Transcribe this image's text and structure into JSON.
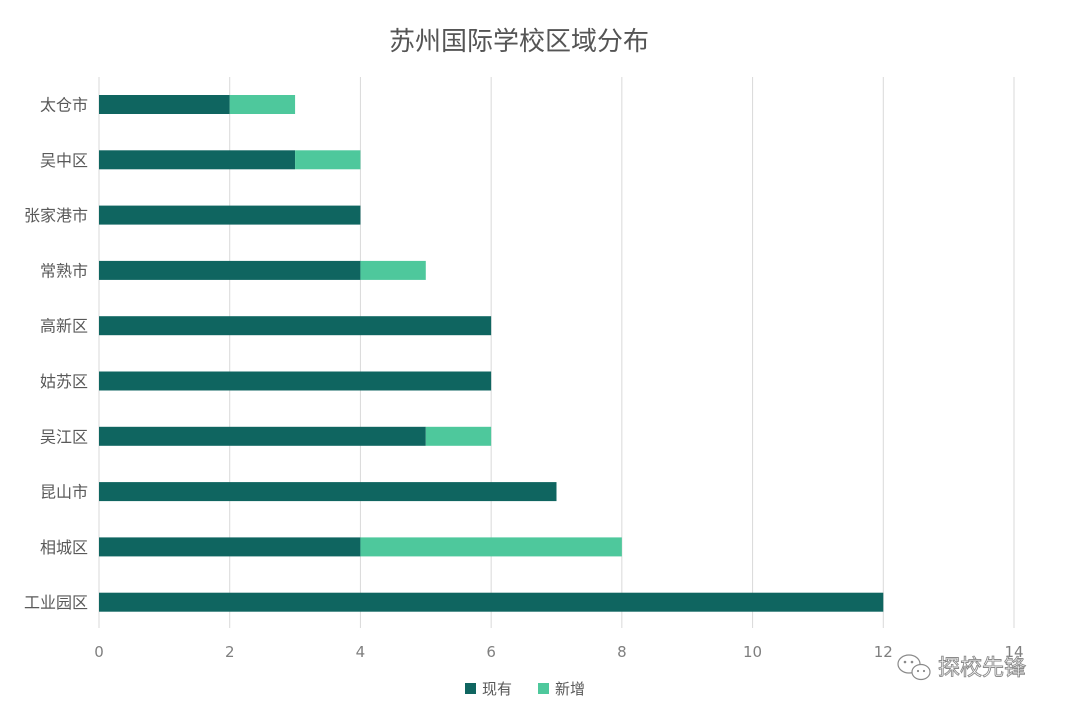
{
  "chart_data": {
    "type": "bar",
    "orientation": "horizontal",
    "stacked": true,
    "title": "苏州国际学校区域分布",
    "categories": [
      "太仓市",
      "吴中区",
      "张家港市",
      "常熟市",
      "高新区",
      "姑苏区",
      "吴江区",
      "昆山市",
      "相城区",
      "工业园区"
    ],
    "series": [
      {
        "name": "现有",
        "values": [
          2,
          3,
          4,
          4,
          6,
          6,
          5,
          7,
          4,
          12
        ]
      },
      {
        "name": "新增",
        "values": [
          1,
          1,
          0,
          1,
          0,
          0,
          1,
          0,
          4,
          0
        ]
      }
    ],
    "xlim": [
      0,
      14
    ],
    "xticks": [
      0,
      2,
      4,
      6,
      8,
      10,
      12,
      14
    ],
    "grid": true,
    "legend_position": "bottom"
  },
  "colors": {
    "现有": "#0f6560",
    "新增": "#4ec89c"
  },
  "watermark": {
    "icon": "wechat-icon",
    "text": "探校先锋"
  }
}
